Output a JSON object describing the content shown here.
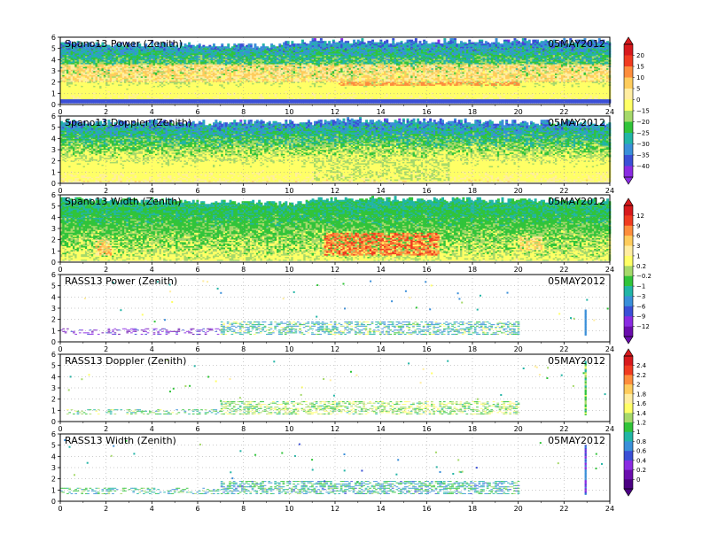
{
  "chart_data": [
    {
      "type": "heatmap",
      "title": "Spano13 Power (Zenith)",
      "date": "05MAY2012",
      "xlim": [
        0,
        24
      ],
      "ylim": [
        0,
        6
      ],
      "x_ticks": [
        0,
        2,
        4,
        6,
        8,
        10,
        12,
        14,
        16,
        18,
        20,
        22,
        24
      ],
      "y_ticks": [
        0,
        1,
        2,
        3,
        4,
        5,
        6
      ],
      "grid": true,
      "colorbar": "A",
      "fill": "dense",
      "coverage_top": [
        [
          0,
          5.4
        ],
        [
          9,
          5.2
        ],
        [
          11,
          5.6
        ],
        [
          24,
          5.6
        ]
      ],
      "bands": [
        {
          "h0": 2.0,
          "h1": 3.6,
          "t0": 0,
          "t1": 24,
          "value": 5
        },
        {
          "h0": 1.6,
          "h1": 2.0,
          "t0": 12,
          "t1": 20,
          "value": 11
        }
      ],
      "surface": {
        "h0": 0.0,
        "h1": 0.3,
        "value": -36
      }
    },
    {
      "type": "heatmap",
      "title": "Spano13 Doppler (Zenith)",
      "date": "05MAY2012",
      "xlim": [
        0,
        24
      ],
      "ylim": [
        0,
        6
      ],
      "x_ticks": [
        0,
        2,
        4,
        6,
        8,
        10,
        12,
        14,
        16,
        18,
        20,
        22,
        24
      ],
      "y_ticks": [
        0,
        1,
        2,
        3,
        4,
        5,
        6
      ],
      "grid": true,
      "colorbar": "A",
      "fill": "dense",
      "coverage_top": [
        [
          0,
          5.4
        ],
        [
          11,
          5.4
        ],
        [
          12,
          5.6
        ],
        [
          24,
          5.3
        ]
      ],
      "bands": [
        {
          "h0": 0.2,
          "h1": 2.2,
          "t0": 11,
          "t1": 17,
          "value": -15
        }
      ],
      "surface": null
    },
    {
      "type": "heatmap",
      "title": "Spano13 Width (Zenith)",
      "date": "05MAY2012",
      "xlim": [
        0,
        24
      ],
      "ylim": [
        0,
        6
      ],
      "x_ticks": [
        0,
        2,
        4,
        6,
        8,
        10,
        12,
        14,
        16,
        18,
        20,
        22,
        24
      ],
      "y_ticks": [
        0,
        1,
        2,
        3,
        4,
        5,
        6
      ],
      "grid": true,
      "colorbar": "B",
      "fill": "dense",
      "coverage_top": [
        [
          0,
          5.6
        ],
        [
          10,
          5.2
        ],
        [
          12,
          5.6
        ],
        [
          24,
          5.4
        ]
      ],
      "bands": [
        {
          "h0": 0.6,
          "h1": 2.6,
          "t0": 11.5,
          "t1": 16.5,
          "value": 8
        },
        {
          "h0": 0.6,
          "h1": 2.0,
          "t0": 1.5,
          "t1": 2.2,
          "value": 4
        },
        {
          "h0": 1.0,
          "h1": 2.2,
          "t0": 20,
          "t1": 21,
          "value": 3
        }
      ],
      "surface": null
    },
    {
      "type": "scatter",
      "title": "RASS13 Power (Zenith)",
      "date": "05MAY2012",
      "xlim": [
        0,
        24
      ],
      "ylim": [
        0,
        6
      ],
      "x_ticks": [
        0,
        2,
        4,
        6,
        8,
        10,
        12,
        14,
        16,
        18,
        20,
        22,
        24
      ],
      "y_ticks": [
        0,
        1,
        2,
        3,
        4,
        5,
        6
      ],
      "grid": true,
      "colorbar": "B",
      "fill": "sparse",
      "layers": [
        {
          "t0": 0,
          "t1": 7,
          "h0": 0.6,
          "h1": 1.1,
          "value": -11
        },
        {
          "t0": 7,
          "t1": 20,
          "h0": 0.6,
          "h1": 1.8,
          "value": -2
        }
      ],
      "spike": {
        "t": 22.9,
        "h0": 0.6,
        "h1": 2.8,
        "value": -5
      }
    },
    {
      "type": "scatter",
      "title": "RASS13 Doppler (Zenith)",
      "date": "05MAY2012",
      "xlim": [
        0,
        24
      ],
      "ylim": [
        0,
        6
      ],
      "x_ticks": [
        0,
        2,
        4,
        6,
        8,
        10,
        12,
        14,
        16,
        18,
        20,
        22,
        24
      ],
      "y_ticks": [
        0,
        1,
        2,
        3,
        4,
        5,
        6
      ],
      "grid": true,
      "colorbar": "C",
      "fill": "sparse",
      "layers": [
        {
          "t0": 0,
          "t1": 7,
          "h0": 0.6,
          "h1": 1.0,
          "value": 1.1
        },
        {
          "t0": 7,
          "t1": 20,
          "h0": 0.6,
          "h1": 1.8,
          "value": 1.3
        }
      ],
      "spike": {
        "t": 22.9,
        "h0": 0.6,
        "h1": 5.3,
        "value": 1.2
      }
    },
    {
      "type": "scatter",
      "title": "RASS13 Width (Zenith)",
      "date": "05MAY2012",
      "xlim": [
        0,
        24
      ],
      "ylim": [
        0,
        6
      ],
      "x_ticks": [
        0,
        2,
        4,
        6,
        8,
        10,
        12,
        14,
        16,
        18,
        20,
        22,
        24
      ],
      "y_ticks": [
        0,
        1,
        2,
        3,
        4,
        5,
        6
      ],
      "grid": true,
      "colorbar": "C",
      "fill": "sparse",
      "layers": [
        {
          "t0": 0,
          "t1": 7,
          "h0": 0.6,
          "h1": 1.2,
          "value": 1.0
        },
        {
          "t0": 7,
          "t1": 20,
          "h0": 0.6,
          "h1": 1.8,
          "value": 0.9
        }
      ],
      "spike": {
        "t": 22.9,
        "h0": 0.6,
        "h1": 5.0,
        "value": 0.5
      }
    }
  ],
  "colorbars": [
    {
      "id": "A",
      "labels": [
        "20",
        "15",
        "10",
        "5",
        "0",
        "−15",
        "−20",
        "−25",
        "−30",
        "−35",
        "−40"
      ],
      "values": [
        20,
        15,
        10,
        5,
        0,
        -15,
        -20,
        -25,
        -30,
        -35,
        -40
      ],
      "colors": [
        "#d7191c",
        "#f03b20",
        "#fd8d3c",
        "#fecc5c",
        "#ffeda0",
        "#ffff66",
        "#a6d96a",
        "#31c43a",
        "#22b5a6",
        "#3a8fd9",
        "#3b4fd6",
        "#8a2be2"
      ]
    },
    {
      "id": "B",
      "labels": [
        "12",
        "9",
        "6",
        "3",
        "1",
        "0.2",
        "−0.2",
        "−1",
        "−3",
        "−6",
        "−9",
        "−12"
      ],
      "values": [
        12,
        9,
        6,
        3,
        1,
        0.2,
        -0.2,
        -1,
        -3,
        -6,
        -9,
        -12
      ],
      "colors": [
        "#d7191c",
        "#f03b20",
        "#fd8d3c",
        "#fecc5c",
        "#ffeda0",
        "#ffff66",
        "#a6d96a",
        "#31c43a",
        "#22b5a6",
        "#3a8fd9",
        "#3b4fd6",
        "#8a2be2",
        "#6a0dad"
      ]
    },
    {
      "id": "C",
      "labels": [
        "2.4",
        "2.2",
        "2",
        "1.8",
        "1.6",
        "1.4",
        "1.2",
        "1",
        "0.8",
        "0.6",
        "0.4",
        "0.2",
        "0"
      ],
      "values": [
        2.4,
        2.2,
        2,
        1.8,
        1.6,
        1.4,
        1.2,
        1,
        0.8,
        0.6,
        0.4,
        0.2,
        0
      ],
      "colors": [
        "#d7191c",
        "#f03b20",
        "#fd8d3c",
        "#fecc5c",
        "#ffeda0",
        "#ffff66",
        "#a6d96a",
        "#31c43a",
        "#22b5a6",
        "#3a8fd9",
        "#3b4fd6",
        "#8a2be2",
        "#6a0dad",
        "#4b0082"
      ]
    }
  ]
}
